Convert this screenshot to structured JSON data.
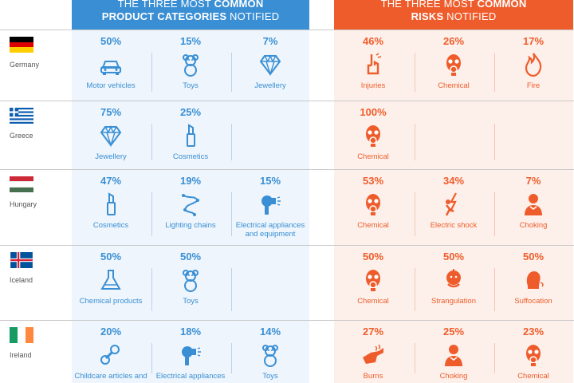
{
  "header": {
    "categories": {
      "pre": "THE THREE ",
      "mid": "MOST ",
      "bold": "COMMON",
      "line2_bold": "PRODUCT CATEGORIES",
      "line2_thin": " NOTIFIED"
    },
    "risks": {
      "pre": "THE THREE ",
      "mid": "MOST ",
      "bold": "COMMON",
      "line2_bold": "RISKS",
      "line2_thin": " NOTIFIED"
    }
  },
  "colors": {
    "categories": "#3a8fd4",
    "risks": "#ef5c2b"
  },
  "rows": [
    {
      "country": "Germany",
      "flag": "germany-flag",
      "categories": [
        {
          "pct": "50%",
          "label": "Motor vehicles",
          "icon": "car-icon"
        },
        {
          "pct": "15%",
          "label": "Toys",
          "icon": "teddy-bear-icon"
        },
        {
          "pct": "7%",
          "label": "Jewellery",
          "icon": "diamond-icon"
        }
      ],
      "risks": [
        {
          "pct": "46%",
          "label": "Injuries",
          "icon": "injury-hand-icon"
        },
        {
          "pct": "26%",
          "label": "Chemical",
          "icon": "gas-mask-icon"
        },
        {
          "pct": "17%",
          "label": "Fire",
          "icon": "flame-icon"
        }
      ]
    },
    {
      "country": "Greece",
      "flag": "greece-flag",
      "categories": [
        {
          "pct": "75%",
          "label": "Jewellery",
          "icon": "diamond-icon"
        },
        {
          "pct": "25%",
          "label": "Cosmetics",
          "icon": "lipstick-icon"
        }
      ],
      "risks": [
        {
          "pct": "100%",
          "label": "Chemical",
          "icon": "gas-mask-icon"
        }
      ]
    },
    {
      "country": "Hungary",
      "flag": "hungary-flag",
      "categories": [
        {
          "pct": "47%",
          "label": "Cosmetics",
          "icon": "lipstick-icon"
        },
        {
          "pct": "19%",
          "label": "Lighting chains",
          "icon": "lighting-chain-icon"
        },
        {
          "pct": "15%",
          "label": "Electrical appliances and equipment",
          "icon": "hair-dryer-icon"
        }
      ],
      "risks": [
        {
          "pct": "53%",
          "label": "Chemical",
          "icon": "gas-mask-icon"
        },
        {
          "pct": "34%",
          "label": "Electric shock",
          "icon": "electric-shock-icon"
        },
        {
          "pct": "7%",
          "label": "Choking",
          "icon": "choking-icon"
        }
      ]
    },
    {
      "country": "Iceland",
      "flag": "iceland-flag",
      "categories": [
        {
          "pct": "50%",
          "label": "Chemical products",
          "icon": "flask-icon"
        },
        {
          "pct": "50%",
          "label": "Toys",
          "icon": "teddy-bear-icon"
        }
      ],
      "risks": [
        {
          "pct": "50%",
          "label": "Chemical",
          "icon": "gas-mask-icon"
        },
        {
          "pct": "50%",
          "label": "Strangulation",
          "icon": "strangulation-icon"
        },
        {
          "pct": "50%",
          "label": "Suffocation",
          "icon": "suffocation-icon"
        }
      ]
    },
    {
      "country": "Ireland",
      "flag": "ireland-flag",
      "categories": [
        {
          "pct": "20%",
          "label": "Childcare articles and",
          "icon": "pacifier-icon"
        },
        {
          "pct": "18%",
          "label": "Electrical appliances",
          "icon": "hair-dryer-icon"
        },
        {
          "pct": "14%",
          "label": "Toys",
          "icon": "teddy-bear-icon"
        }
      ],
      "risks": [
        {
          "pct": "27%",
          "label": "Burns",
          "icon": "burn-hand-icon"
        },
        {
          "pct": "25%",
          "label": "Choking",
          "icon": "choking-icon"
        },
        {
          "pct": "23%",
          "label": "Chemical",
          "icon": "gas-mask-icon"
        }
      ]
    }
  ]
}
